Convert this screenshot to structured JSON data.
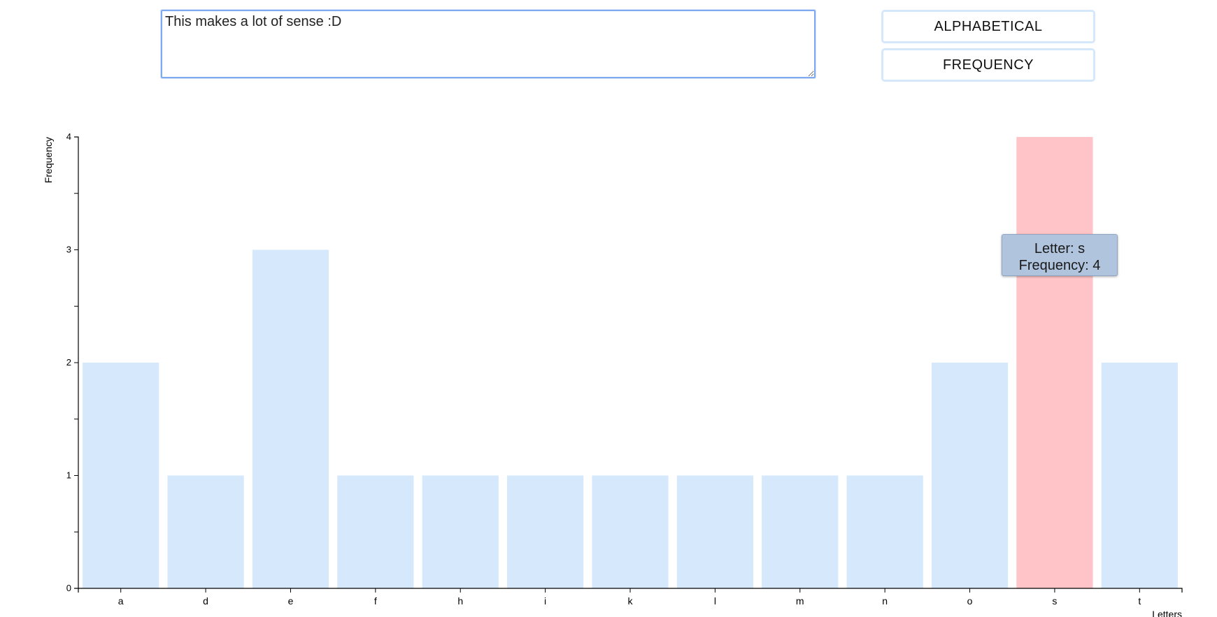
{
  "input": {
    "value": "This makes a lot of sense :D"
  },
  "buttons": {
    "alphabetical_label": "ALPHABETICAL",
    "frequency_label": "FREQUENCY"
  },
  "tooltip": {
    "letter_line": "Letter: s",
    "frequency_line": "Frequency: 4"
  },
  "colors": {
    "bar": "#d6e9fc",
    "bar_highlight": "#ffc4c7",
    "axis": "#000000"
  },
  "chart_data": {
    "type": "bar",
    "categories": [
      "a",
      "d",
      "e",
      "f",
      "h",
      "i",
      "k",
      "l",
      "m",
      "n",
      "o",
      "s",
      "t"
    ],
    "values": [
      2,
      1,
      3,
      1,
      1,
      1,
      1,
      1,
      1,
      1,
      2,
      4,
      2
    ],
    "highlighted": "s",
    "xlabel": "Letters",
    "ylabel": "Frequency",
    "ylim": [
      0,
      4
    ],
    "yticks": [
      "0",
      "1",
      "2",
      "3",
      "4"
    ],
    "grid": false,
    "legend": "none"
  }
}
